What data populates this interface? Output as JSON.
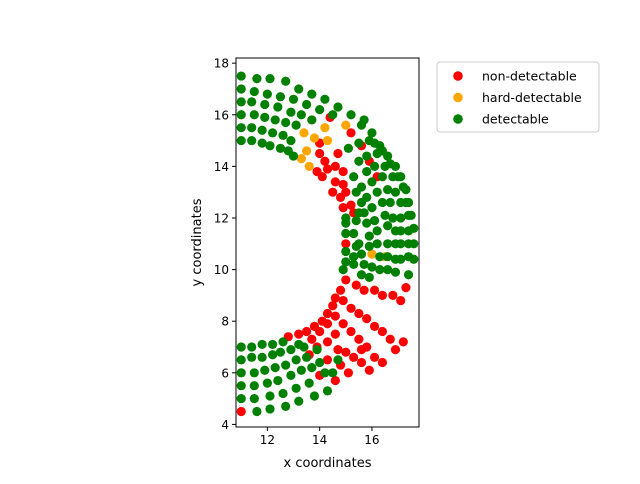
{
  "chart_data": {
    "type": "scatter",
    "title": "",
    "xlabel": "x coordinates",
    "ylabel": "y coordinates",
    "xlim": [
      10.8,
      17.8
    ],
    "ylim": [
      3.9,
      18.2
    ],
    "xticks": [
      12,
      14,
      16
    ],
    "yticks": [
      4,
      6,
      8,
      10,
      12,
      14,
      16,
      18
    ],
    "grid": false,
    "legend_position": "top-right outside",
    "series": [
      {
        "name": "non-detectable",
        "color": "#ff0000",
        "points": [
          [
            14.4,
            15.9
          ],
          [
            15.2,
            15.3
          ],
          [
            15.6,
            14.8
          ],
          [
            15.9,
            14.2
          ],
          [
            16.2,
            13.6
          ],
          [
            14.6,
            13.4
          ],
          [
            14.8,
            12.8
          ],
          [
            15.0,
            13.0
          ],
          [
            15.2,
            12.5
          ],
          [
            15.3,
            12.2
          ],
          [
            14.9,
            12.4
          ],
          [
            14.0,
            14.9
          ],
          [
            14.7,
            14.5
          ],
          [
            14.0,
            14.5
          ],
          [
            14.2,
            14.2
          ],
          [
            14.3,
            13.9
          ],
          [
            14.6,
            14.0
          ],
          [
            14.9,
            13.8
          ],
          [
            14.9,
            13.3
          ],
          [
            15.0,
            11.0
          ],
          [
            14.1,
            13.6
          ],
          [
            13.9,
            13.8
          ],
          [
            14.5,
            13.0
          ],
          [
            15.0,
            9.6
          ],
          [
            15.4,
            9.4
          ],
          [
            15.7,
            9.2
          ],
          [
            16.1,
            9.2
          ],
          [
            16.4,
            9.0
          ],
          [
            16.8,
            9.0
          ],
          [
            17.1,
            8.8
          ],
          [
            17.3,
            9.3
          ],
          [
            14.8,
            9.2
          ],
          [
            14.6,
            8.9
          ],
          [
            14.5,
            8.6
          ],
          [
            14.3,
            8.3
          ],
          [
            14.1,
            8.0
          ],
          [
            13.8,
            7.8
          ],
          [
            13.5,
            7.6
          ],
          [
            13.2,
            7.5
          ],
          [
            12.8,
            7.4
          ],
          [
            14.9,
            8.8
          ],
          [
            15.2,
            8.5
          ],
          [
            15.5,
            8.3
          ],
          [
            15.8,
            8.1
          ],
          [
            16.1,
            7.8
          ],
          [
            16.4,
            7.6
          ],
          [
            16.7,
            7.3
          ],
          [
            16.9,
            6.9
          ],
          [
            17.2,
            7.2
          ],
          [
            14.6,
            8.2
          ],
          [
            14.3,
            7.9
          ],
          [
            14.0,
            7.6
          ],
          [
            13.7,
            7.3
          ],
          [
            14.9,
            7.9
          ],
          [
            15.2,
            7.6
          ],
          [
            15.5,
            7.3
          ],
          [
            15.8,
            7.0
          ],
          [
            16.1,
            6.6
          ],
          [
            16.4,
            6.4
          ],
          [
            14.6,
            7.5
          ],
          [
            14.3,
            7.2
          ],
          [
            13.9,
            7.0
          ],
          [
            14.7,
            6.9
          ],
          [
            15.0,
            6.8
          ],
          [
            15.3,
            6.6
          ],
          [
            15.6,
            6.4
          ],
          [
            15.9,
            6.1
          ],
          [
            14.3,
            6.5
          ],
          [
            14.8,
            6.3
          ],
          [
            15.1,
            6.0
          ],
          [
            13.6,
            6.7
          ],
          [
            14.0,
            5.9
          ],
          [
            14.6,
            5.7
          ],
          [
            15.6,
            6.9
          ],
          [
            11.0,
            4.5
          ]
        ]
      },
      {
        "name": "hard-detectable",
        "color": "#ffa500",
        "points": [
          [
            13.7,
            15.8
          ],
          [
            14.2,
            15.5
          ],
          [
            15.0,
            15.6
          ],
          [
            13.4,
            15.3
          ],
          [
            13.8,
            15.1
          ],
          [
            14.3,
            15.0
          ],
          [
            13.5,
            14.6
          ],
          [
            13.3,
            14.3
          ],
          [
            13.6,
            14.0
          ],
          [
            16.0,
            10.6
          ],
          [
            16.5,
            10.5
          ]
        ]
      },
      {
        "name": "detectable",
        "color": "#008000",
        "points": [
          [
            11.0,
            17.5
          ],
          [
            11.6,
            17.4
          ],
          [
            12.1,
            17.4
          ],
          [
            12.7,
            17.3
          ],
          [
            13.2,
            17.0
          ],
          [
            13.7,
            16.8
          ],
          [
            14.2,
            16.6
          ],
          [
            14.7,
            16.3
          ],
          [
            15.2,
            16.0
          ],
          [
            15.6,
            15.6
          ],
          [
            16.0,
            15.3
          ],
          [
            16.3,
            14.8
          ],
          [
            16.6,
            14.4
          ],
          [
            16.9,
            14.0
          ],
          [
            17.1,
            13.6
          ],
          [
            17.3,
            13.1
          ],
          [
            17.4,
            12.6
          ],
          [
            17.5,
            12.1
          ],
          [
            17.6,
            11.6
          ],
          [
            17.6,
            11.0
          ],
          [
            17.6,
            10.4
          ],
          [
            11.0,
            17.0
          ],
          [
            11.5,
            16.9
          ],
          [
            12.0,
            16.8
          ],
          [
            12.5,
            16.7
          ],
          [
            13.0,
            16.6
          ],
          [
            13.5,
            16.4
          ],
          [
            14.0,
            16.2
          ],
          [
            14.5,
            16.0
          ],
          [
            15.7,
            15.8
          ],
          [
            16.1,
            14.9
          ],
          [
            16.4,
            14.6
          ],
          [
            16.7,
            14.1
          ],
          [
            17.0,
            13.6
          ],
          [
            17.2,
            13.2
          ],
          [
            17.3,
            12.6
          ],
          [
            17.4,
            12.1
          ],
          [
            17.4,
            11.5
          ],
          [
            17.4,
            11.0
          ],
          [
            17.4,
            10.5
          ],
          [
            11.0,
            16.5
          ],
          [
            11.4,
            16.5
          ],
          [
            11.9,
            16.4
          ],
          [
            12.4,
            16.3
          ],
          [
            12.9,
            16.1
          ],
          [
            13.3,
            16.0
          ],
          [
            13.7,
            15.8
          ],
          [
            15.9,
            15.0
          ],
          [
            16.2,
            14.5
          ],
          [
            16.5,
            14.0
          ],
          [
            16.8,
            13.6
          ],
          [
            16.9,
            13.0
          ],
          [
            17.1,
            12.6
          ],
          [
            17.1,
            12.0
          ],
          [
            17.1,
            11.5
          ],
          [
            17.1,
            11.0
          ],
          [
            17.1,
            10.4
          ],
          [
            11.0,
            16.0
          ],
          [
            11.5,
            16.0
          ],
          [
            11.9,
            15.9
          ],
          [
            12.3,
            15.8
          ],
          [
            12.7,
            15.7
          ],
          [
            13.1,
            15.6
          ],
          [
            15.5,
            14.9
          ],
          [
            15.8,
            14.4
          ],
          [
            16.1,
            14.0
          ],
          [
            16.4,
            13.6
          ],
          [
            16.6,
            13.1
          ],
          [
            16.7,
            12.6
          ],
          [
            16.8,
            12.0
          ],
          [
            16.9,
            11.5
          ],
          [
            16.9,
            11.0
          ],
          [
            16.9,
            10.4
          ],
          [
            11.0,
            15.5
          ],
          [
            11.4,
            15.5
          ],
          [
            11.8,
            15.4
          ],
          [
            12.2,
            15.3
          ],
          [
            12.6,
            15.2
          ],
          [
            12.9,
            15.0
          ],
          [
            15.1,
            14.7
          ],
          [
            15.5,
            14.2
          ],
          [
            15.8,
            13.8
          ],
          [
            16.0,
            13.4
          ],
          [
            16.2,
            13.0
          ],
          [
            16.4,
            12.6
          ],
          [
            16.5,
            12.1
          ],
          [
            16.6,
            11.7
          ],
          [
            16.6,
            11.0
          ],
          [
            16.6,
            10.5
          ],
          [
            11.0,
            15.0
          ],
          [
            11.4,
            15.0
          ],
          [
            11.8,
            14.9
          ],
          [
            12.1,
            14.8
          ],
          [
            12.5,
            14.7
          ],
          [
            12.8,
            14.6
          ],
          [
            13.0,
            14.4
          ],
          [
            15.3,
            13.6
          ],
          [
            15.6,
            13.2
          ],
          [
            15.8,
            12.8
          ],
          [
            16.0,
            12.4
          ],
          [
            16.1,
            11.9
          ],
          [
            16.2,
            11.5
          ],
          [
            16.2,
            11.0
          ],
          [
            16.3,
            10.5
          ],
          [
            15.4,
            13.0
          ],
          [
            15.6,
            12.6
          ],
          [
            15.7,
            12.2
          ],
          [
            15.8,
            11.8
          ],
          [
            15.9,
            11.3
          ],
          [
            15.9,
            10.9
          ],
          [
            15.0,
            12.0
          ],
          [
            15.0,
            11.8
          ],
          [
            15.0,
            11.4
          ],
          [
            15.0,
            10.7
          ],
          [
            15.0,
            10.3
          ],
          [
            14.9,
            10.0
          ],
          [
            15.3,
            10.2
          ],
          [
            15.3,
            10.5
          ],
          [
            15.4,
            10.9
          ],
          [
            15.3,
            11.4
          ],
          [
            15.4,
            11.9
          ],
          [
            15.5,
            12.2
          ],
          [
            15.5,
            11.0
          ],
          [
            15.6,
            10.6
          ],
          [
            15.7,
            10.2
          ],
          [
            15.6,
            9.8
          ],
          [
            15.9,
            9.7
          ],
          [
            16.3,
            10.0
          ],
          [
            16.6,
            10.0
          ],
          [
            16.9,
            9.9
          ],
          [
            17.4,
            9.8
          ],
          [
            16.0,
            10.1
          ],
          [
            11.0,
            7.0
          ],
          [
            11.4,
            7.0
          ],
          [
            11.8,
            7.1
          ],
          [
            12.2,
            7.1
          ],
          [
            12.6,
            7.2
          ],
          [
            11.0,
            6.5
          ],
          [
            11.4,
            6.6
          ],
          [
            11.8,
            6.6
          ],
          [
            12.2,
            6.7
          ],
          [
            12.5,
            6.8
          ],
          [
            12.9,
            6.9
          ],
          [
            13.2,
            7.1
          ],
          [
            11.0,
            6.0
          ],
          [
            11.5,
            6.0
          ],
          [
            11.9,
            6.1
          ],
          [
            12.3,
            6.2
          ],
          [
            12.7,
            6.3
          ],
          [
            13.1,
            6.5
          ],
          [
            13.5,
            6.6
          ],
          [
            13.9,
            6.9
          ],
          [
            11.0,
            5.5
          ],
          [
            11.5,
            5.5
          ],
          [
            12.0,
            5.6
          ],
          [
            12.4,
            5.7
          ],
          [
            12.9,
            5.9
          ],
          [
            13.3,
            6.1
          ],
          [
            13.7,
            6.2
          ],
          [
            14.0,
            6.4
          ],
          [
            11.0,
            5.0
          ],
          [
            11.5,
            5.0
          ],
          [
            12.1,
            5.1
          ],
          [
            12.6,
            5.2
          ],
          [
            13.1,
            5.4
          ],
          [
            13.6,
            5.6
          ],
          [
            14.2,
            6.0
          ],
          [
            14.3,
            5.3
          ],
          [
            11.6,
            4.5
          ],
          [
            12.1,
            4.6
          ],
          [
            12.7,
            4.7
          ],
          [
            13.2,
            4.9
          ],
          [
            13.8,
            5.1
          ],
          [
            14.5,
            6.0
          ],
          [
            14.7,
            6.5
          ],
          [
            13.4,
            7.0
          ]
        ]
      }
    ]
  }
}
